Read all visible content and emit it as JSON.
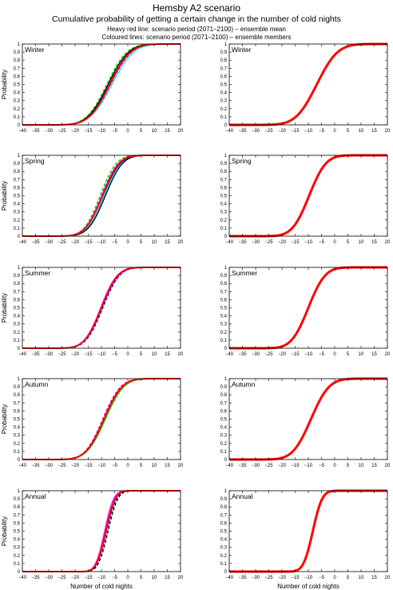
{
  "title": "Hemsby A2 scenario",
  "subtitle": "Cumulative probability of getting a certain change in the number of cold nights",
  "note_mean": "Heavy red line: scenario period (2071–2100) – ensemble mean",
  "note_members": "Coloured lines: scenario period (2071–2100) – ensemble members",
  "colors": {
    "mean": "#ff0000",
    "members": [
      "#00c8ff",
      "#00d000",
      "#0000ff",
      "#ff00ff",
      "#ff0000",
      "#000000",
      "#ffff00",
      "#00ffff"
    ]
  },
  "chart_data": [
    {
      "type": "line",
      "season": "Winter",
      "panel": "members",
      "ylabel": "Probability",
      "xlim": [
        -40,
        20
      ],
      "ylim": [
        0,
        1
      ],
      "xticks": [
        -40,
        -35,
        -30,
        -25,
        -20,
        -15,
        -10,
        -5,
        0,
        5,
        10,
        15,
        20
      ],
      "yticks": [
        0,
        0.1,
        0.2,
        0.3,
        0.4,
        0.5,
        0.6,
        0.7,
        0.8,
        0.9,
        1
      ],
      "series": [
        {
          "mu": -6,
          "sigma": 6.5,
          "color": "#00ffff"
        },
        {
          "mu": -8,
          "sigma": 6,
          "color": "#00d000"
        },
        {
          "mu": -7,
          "sigma": 6.2,
          "color": "#0000ff"
        },
        {
          "mu": -6.5,
          "sigma": 6.3,
          "color": "#ff00ff"
        },
        {
          "mu": -7.5,
          "sigma": 6.1,
          "color": "#000000"
        },
        {
          "mu": -6.8,
          "sigma": 6.2,
          "color": "#ff0000",
          "heavy": true
        }
      ]
    },
    {
      "type": "line",
      "season": "Winter",
      "panel": "mean",
      "xlim": [
        -40,
        20
      ],
      "ylim": [
        0,
        1
      ],
      "series": [
        {
          "mu": -6.8,
          "sigma": 6.2,
          "color": "#ff0000",
          "heavy": true
        }
      ]
    },
    {
      "type": "line",
      "season": "Spring",
      "panel": "members",
      "ylabel": "Probability",
      "xlim": [
        -40,
        20
      ],
      "ylim": [
        0,
        1
      ],
      "series": [
        {
          "mu": -9,
          "sigma": 5,
          "color": "#00c8ff"
        },
        {
          "mu": -10.5,
          "sigma": 4.8,
          "color": "#00d000"
        },
        {
          "mu": -9.5,
          "sigma": 5.2,
          "color": "#0000ff"
        },
        {
          "mu": -10,
          "sigma": 5,
          "color": "#ff00ff"
        },
        {
          "mu": -8.5,
          "sigma": 5.1,
          "color": "#000000"
        },
        {
          "mu": -9.7,
          "sigma": 5,
          "color": "#ff0000",
          "heavy": true
        }
      ]
    },
    {
      "type": "line",
      "season": "Spring",
      "panel": "mean",
      "xlim": [
        -40,
        20
      ],
      "ylim": [
        0,
        1
      ],
      "series": [
        {
          "mu": -9.7,
          "sigma": 5,
          "color": "#ff0000",
          "heavy": true
        }
      ]
    },
    {
      "type": "line",
      "season": "Summer",
      "panel": "members",
      "ylabel": "Probability",
      "xlim": [
        -40,
        20
      ],
      "ylim": [
        0,
        1
      ],
      "series": [
        {
          "mu": -10,
          "sigma": 5,
          "color": "#00d000"
        },
        {
          "mu": -9.5,
          "sigma": 5,
          "color": "#0000ff"
        },
        {
          "mu": -10.3,
          "sigma": 4.9,
          "color": "#ff00ff"
        },
        {
          "mu": -9.8,
          "sigma": 5,
          "color": "#000000"
        },
        {
          "mu": -10,
          "sigma": 5,
          "color": "#ff0000",
          "heavy": true
        }
      ]
    },
    {
      "type": "line",
      "season": "Summer",
      "panel": "mean",
      "xlim": [
        -40,
        20
      ],
      "ylim": [
        0,
        1
      ],
      "series": [
        {
          "mu": -10,
          "sigma": 5,
          "color": "#ff0000",
          "heavy": true
        }
      ]
    },
    {
      "type": "line",
      "season": "Autumn",
      "panel": "members",
      "ylabel": "Probability",
      "xlim": [
        -40,
        20
      ],
      "ylim": [
        0,
        1
      ],
      "series": [
        {
          "mu": -8.5,
          "sigma": 5.5,
          "color": "#00d000"
        },
        {
          "mu": -9.5,
          "sigma": 5.3,
          "color": "#ff00ff"
        },
        {
          "mu": -9,
          "sigma": 5.4,
          "color": "#0000ff"
        },
        {
          "mu": -9.2,
          "sigma": 5.4,
          "color": "#000000"
        },
        {
          "mu": -9,
          "sigma": 5.4,
          "color": "#ff0000",
          "heavy": true
        }
      ]
    },
    {
      "type": "line",
      "season": "Autumn",
      "panel": "mean",
      "xlim": [
        -40,
        20
      ],
      "ylim": [
        0,
        1
      ],
      "series": [
        {
          "mu": -9,
          "sigma": 5.4,
          "color": "#ff0000",
          "heavy": true
        }
      ]
    },
    {
      "type": "line",
      "season": "Annual",
      "panel": "members",
      "ylabel": "Probability",
      "xlabel": "Number of cold nights",
      "xlim": [
        -40,
        20
      ],
      "ylim": [
        0,
        1
      ],
      "series": [
        {
          "mu": -8.5,
          "sigma": 2.8,
          "color": "#00d000"
        },
        {
          "mu": -8,
          "sigma": 2.9,
          "color": "#0000ff"
        },
        {
          "mu": -8.8,
          "sigma": 2.7,
          "color": "#ff00ff"
        },
        {
          "mu": -7.5,
          "sigma": 2.9,
          "color": "#000000"
        },
        {
          "mu": -8.3,
          "sigma": 2.8,
          "color": "#ff0000",
          "heavy": true
        }
      ]
    },
    {
      "type": "line",
      "season": "Annual",
      "panel": "mean",
      "xlabel": "Number of cold nights",
      "xlim": [
        -40,
        20
      ],
      "ylim": [
        0,
        1
      ],
      "series": [
        {
          "mu": -8.3,
          "sigma": 2.8,
          "color": "#ff0000",
          "heavy": true
        }
      ]
    }
  ]
}
